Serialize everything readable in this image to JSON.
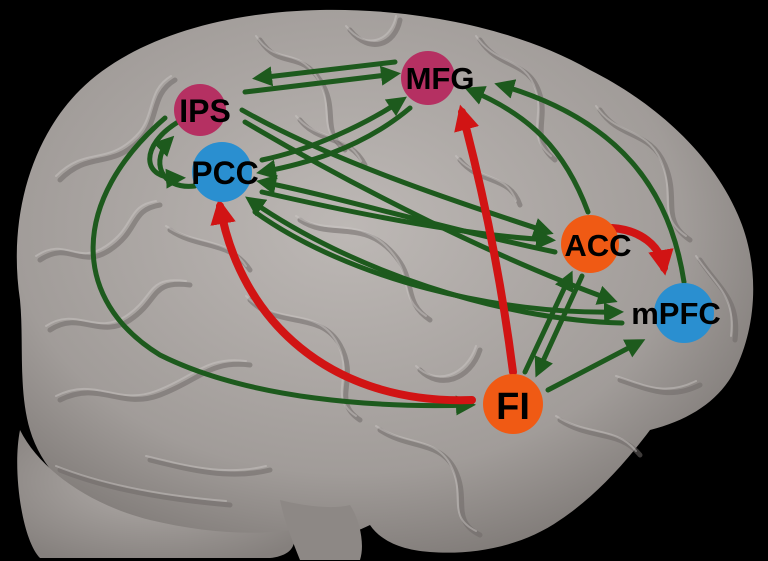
{
  "colors": {
    "background": "#000000",
    "brain_base": "#a9a4a1",
    "brain_shadow": "#6f6a67",
    "brain_highlight": "#d2cdca",
    "edge_green": "#1d5a1d",
    "edge_red": "#d11414",
    "node_magenta": "#b53062",
    "node_blue": "#2a8fd0",
    "node_orange": "#f05a14"
  },
  "nodes": {
    "ips": {
      "label": "IPS",
      "color": "#b53062"
    },
    "pcc": {
      "label": "PCC",
      "color": "#2a8fd0"
    },
    "mfg": {
      "label": "MFG",
      "color": "#b53062"
    },
    "acc": {
      "label": "ACC",
      "color": "#f05a14"
    },
    "mpfc": {
      "label": "mPFC",
      "color": "#2a8fd0"
    },
    "fi": {
      "label": "FI",
      "color": "#f05a14"
    }
  },
  "edges": [
    {
      "from": "MFG",
      "to": "IPS",
      "color": "green"
    },
    {
      "from": "IPS",
      "to": "MFG",
      "color": "green"
    },
    {
      "from": "MFG",
      "to": "PCC",
      "color": "green"
    },
    {
      "from": "PCC",
      "to": "MFG",
      "color": "green"
    },
    {
      "from": "IPS",
      "to": "PCC",
      "color": "green"
    },
    {
      "from": "PCC",
      "to": "IPS",
      "color": "green"
    },
    {
      "from": "IPS",
      "to": "ACC",
      "color": "green"
    },
    {
      "from": "IPS",
      "to": "mPFC",
      "color": "green"
    },
    {
      "from": "IPS",
      "to": "FI",
      "color": "green"
    },
    {
      "from": "ACC",
      "to": "PCC",
      "color": "green"
    },
    {
      "from": "PCC",
      "to": "ACC",
      "color": "green"
    },
    {
      "from": "mPFC",
      "to": "PCC",
      "color": "green"
    },
    {
      "from": "PCC",
      "to": "mPFC",
      "color": "green"
    },
    {
      "from": "ACC",
      "to": "MFG",
      "color": "green"
    },
    {
      "from": "mPFC",
      "to": "MFG",
      "color": "green"
    },
    {
      "from": "ACC",
      "to": "mPFC",
      "color": "red"
    },
    {
      "from": "FI",
      "to": "ACC",
      "color": "green"
    },
    {
      "from": "ACC",
      "to": "FI",
      "color": "green"
    },
    {
      "from": "FI",
      "to": "mPFC",
      "color": "green"
    },
    {
      "from": "FI",
      "to": "PCC",
      "color": "red"
    },
    {
      "from": "FI",
      "to": "MFG",
      "color": "red"
    }
  ]
}
